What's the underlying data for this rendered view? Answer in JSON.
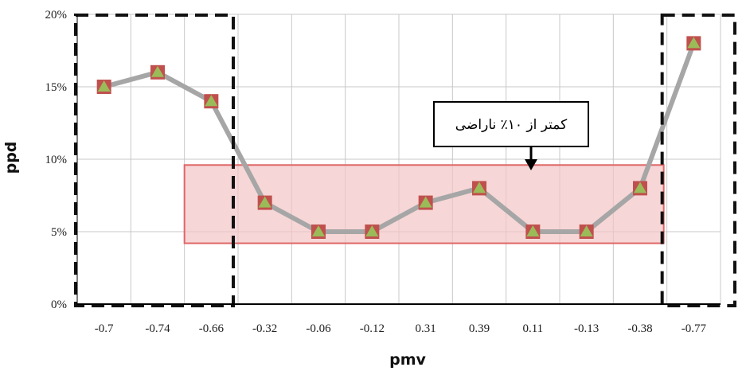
{
  "chart_data": {
    "type": "line",
    "categories": [
      "-0.7",
      "-0.74",
      "-0.66",
      "-0.32",
      "-0.06",
      "-0.12",
      "0.31",
      "0.39",
      "0.11",
      "-0.13",
      "-0.38",
      "-0.77"
    ],
    "series": [
      {
        "values": [
          15,
          16,
          14,
          7,
          5,
          5,
          7,
          8,
          5,
          5,
          8,
          18
        ]
      }
    ],
    "title": "",
    "xlabel": "pmv",
    "ylabel": "ppd",
    "ylim": [
      0,
      20
    ],
    "yticks": [
      "0%",
      "5%",
      "10%",
      "15%",
      "20%"
    ],
    "grid": true,
    "annotation": {
      "text": "کمتر از ۱۰٪ ناراضی",
      "highlight_band": {
        "from_category": "-0.66",
        "to_category": "-0.38",
        "y_min": 4.2,
        "y_max": 9.6
      }
    },
    "dashed_boxes": [
      {
        "from_category": "-0.7",
        "to_category": "-0.66"
      },
      {
        "from_category": "-0.77",
        "to_category": "-0.77"
      }
    ],
    "colors": {
      "line": "#a6a6a6",
      "marker": "#c0504d",
      "marker_center": "#9bbb59",
      "band_fill": "#f2c4c4",
      "band_stroke": "#e06666",
      "grid": "#c8c8c8",
      "axis": "#000000"
    }
  }
}
